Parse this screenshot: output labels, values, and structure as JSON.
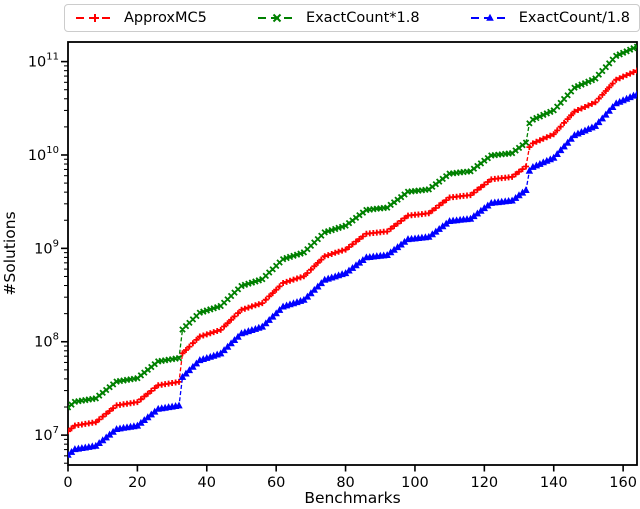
{
  "figure": {
    "background": "#ffffff"
  },
  "legend": {
    "border_color": "#cccccc",
    "items": [
      {
        "label": "ApproxMC5"
      },
      {
        "label": "ExactCount*1.8"
      },
      {
        "label": "ExactCount/1.8"
      }
    ]
  },
  "axes": {
    "xlabel": "Benchmarks",
    "ylabel": "#Solutions",
    "x_ticks": [
      0,
      20,
      40,
      60,
      80,
      100,
      120,
      140,
      160
    ],
    "y_ticks_log10": [
      7,
      8,
      9,
      10,
      11
    ],
    "y_tick_labels": [
      "10^7",
      "10^8",
      "10^9",
      "10^10",
      "10^11"
    ],
    "xlim": [
      0,
      164
    ],
    "ylim_log10": [
      6.68,
      11.21
    ],
    "yscale": "log",
    "grid": false
  },
  "chart_data": {
    "type": "line",
    "title": "",
    "xlabel": "Benchmarks",
    "ylabel": "#Solutions",
    "yscale": "log",
    "legend_position": "top-outside",
    "x": {
      "start": 0,
      "step": 1,
      "count": 165
    },
    "log10_base_note": "log10 of ApproxMC5 solution count per sorted benchmark; plotted value = 10^(log10_base + series.offset_log10)",
    "log10_base": [
      7.042,
      7.072,
      7.102,
      7.108,
      7.114,
      7.12,
      7.126,
      7.132,
      7.138,
      7.168,
      7.198,
      7.228,
      7.258,
      7.288,
      7.318,
      7.324,
      7.33,
      7.336,
      7.342,
      7.348,
      7.354,
      7.384,
      7.414,
      7.444,
      7.474,
      7.504,
      7.534,
      7.54,
      7.546,
      7.552,
      7.558,
      7.564,
      7.57,
      7.876,
      7.912,
      7.948,
      7.984,
      8.02,
      8.056,
      8.067,
      8.079,
      8.091,
      8.103,
      8.115,
      8.127,
      8.163,
      8.199,
      8.235,
      8.271,
      8.306,
      8.342,
      8.354,
      8.366,
      8.378,
      8.39,
      8.402,
      8.414,
      8.45,
      8.486,
      8.521,
      8.557,
      8.593,
      8.629,
      8.641,
      8.653,
      8.665,
      8.677,
      8.689,
      8.701,
      8.736,
      8.772,
      8.808,
      8.844,
      8.88,
      8.916,
      8.928,
      8.94,
      8.952,
      8.964,
      8.976,
      8.987,
      9.015,
      9.043,
      9.072,
      9.1,
      9.128,
      9.156,
      9.16,
      9.165,
      9.169,
      9.173,
      9.177,
      9.181,
      9.21,
      9.238,
      9.266,
      9.294,
      9.322,
      9.351,
      9.355,
      9.359,
      9.363,
      9.367,
      9.372,
      9.376,
      9.404,
      9.432,
      9.46,
      9.489,
      9.517,
      9.545,
      9.549,
      9.553,
      9.558,
      9.562,
      9.566,
      9.57,
      9.598,
      9.627,
      9.655,
      9.683,
      9.711,
      9.739,
      9.744,
      9.748,
      9.752,
      9.756,
      9.76,
      9.765,
      9.793,
      9.821,
      9.849,
      9.877,
      10.084,
      10.124,
      10.141,
      10.157,
      10.174,
      10.19,
      10.206,
      10.223,
      10.263,
      10.304,
      10.344,
      10.384,
      10.425,
      10.465,
      10.482,
      10.498,
      10.514,
      10.531,
      10.547,
      10.564,
      10.604,
      10.644,
      10.685,
      10.725,
      10.766,
      10.806,
      10.822,
      10.839,
      10.855,
      10.872,
      10.888,
      10.904
    ],
    "series": [
      {
        "name": "ApproxMC5",
        "color": "#ff0000",
        "marker": "plus",
        "linestyle": "dashed",
        "offset_log10": 0
      },
      {
        "name": "ExactCount*1.8",
        "color": "#008000",
        "marker": "x",
        "linestyle": "dashed",
        "offset_log10": 0.2553
      },
      {
        "name": "ExactCount/1.8",
        "color": "#0000ff",
        "marker": "triangle-up",
        "linestyle": "dashed",
        "offset_log10": -0.2553
      }
    ]
  }
}
